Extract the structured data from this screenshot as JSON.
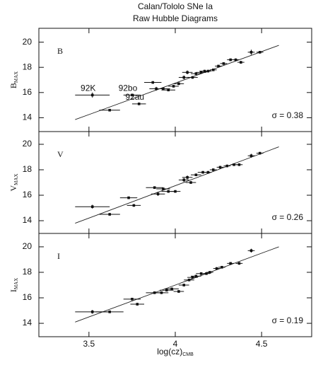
{
  "chart_data": [
    {
      "type": "scatter",
      "title": "Calan/Tololo SNe Ia",
      "subtitle": "Raw Hubble Diagrams",
      "panel_label": "B",
      "ylabel": "B",
      "ylabel_sub": "MAX",
      "annotation": "σ   = 0.38",
      "xlim": [
        3.21,
        4.79
      ],
      "ylim": [
        12.9,
        21.1
      ],
      "yticks": [
        14,
        16,
        18,
        20
      ],
      "color": "#111111",
      "x": [
        3.52,
        3.62,
        3.75,
        3.79,
        3.87,
        3.89,
        3.93,
        3.96,
        3.99,
        4.02,
        4.05,
        4.07,
        4.1,
        4.12,
        4.15,
        4.17,
        4.19,
        4.22,
        4.25,
        4.28,
        4.32,
        4.35,
        4.38,
        4.44,
        4.49
      ],
      "values": [
        15.8,
        14.6,
        15.8,
        15.1,
        16.8,
        16.3,
        16.3,
        16.2,
        16.5,
        16.7,
        17.2,
        17.6,
        17.2,
        17.5,
        17.6,
        17.7,
        17.7,
        17.8,
        18.1,
        18.3,
        18.6,
        18.6,
        18.4,
        19.2,
        19.2
      ],
      "xerr": [
        0.1,
        0.06,
        0.05,
        0.04,
        0.05,
        0.04,
        0.04,
        0.04,
        0.03,
        0.03,
        0.03,
        0.03,
        0.03,
        0.03,
        0.03,
        0.03,
        0.02,
        0.02,
        0.02,
        0.02,
        0.02,
        0.02,
        0.02,
        0.02,
        0.02
      ],
      "yerr": [
        0.2,
        0.1,
        0.1,
        0.1,
        0.1,
        0.15,
        0.1,
        0.1,
        0.1,
        0.1,
        0.15,
        0.15,
        0.1,
        0.1,
        0.1,
        0.1,
        0.1,
        0.1,
        0.1,
        0.1,
        0.1,
        0.1,
        0.1,
        0.2,
        0.1
      ],
      "labels": [
        "92K",
        null,
        "92bo",
        "92au",
        null,
        null,
        null,
        null,
        null,
        null,
        null,
        null,
        null,
        null,
        null,
        null,
        null,
        null,
        null,
        null,
        null,
        null,
        null,
        null,
        null
      ],
      "fit": {
        "x": [
          3.42,
          4.6
        ],
        "y": [
          13.85,
          19.75
        ]
      }
    },
    {
      "type": "scatter",
      "panel_label": "V",
      "ylabel": "V",
      "ylabel_sub": "MAX",
      "annotation": "σ   = 0.26",
      "xlim": [
        3.21,
        4.79
      ],
      "ylim": [
        13.0,
        21.0
      ],
      "yticks": [
        14,
        16,
        18,
        20
      ],
      "color": "#111111",
      "x": [
        3.52,
        3.62,
        3.73,
        3.76,
        3.88,
        3.9,
        3.93,
        3.96,
        4.0,
        4.05,
        4.07,
        4.09,
        4.12,
        4.16,
        4.19,
        4.22,
        4.26,
        4.3,
        4.34,
        4.37,
        4.44,
        4.49
      ],
      "values": [
        15.1,
        14.5,
        15.8,
        15.2,
        16.6,
        16.1,
        16.5,
        16.3,
        16.3,
        17.2,
        17.4,
        17.0,
        17.6,
        17.8,
        17.8,
        18.0,
        18.2,
        18.3,
        18.4,
        18.4,
        19.1,
        19.3
      ],
      "xerr": [
        0.1,
        0.06,
        0.05,
        0.04,
        0.05,
        0.04,
        0.04,
        0.04,
        0.03,
        0.03,
        0.03,
        0.03,
        0.03,
        0.03,
        0.02,
        0.02,
        0.02,
        0.02,
        0.02,
        0.02,
        0.02,
        0.02
      ],
      "yerr": [
        0.15,
        0.1,
        0.1,
        0.1,
        0.1,
        0.15,
        0.1,
        0.1,
        0.1,
        0.15,
        0.15,
        0.1,
        0.1,
        0.1,
        0.1,
        0.1,
        0.1,
        0.1,
        0.1,
        0.1,
        0.15,
        0.1
      ],
      "fit": {
        "x": [
          3.42,
          4.6
        ],
        "y": [
          13.8,
          19.8
        ]
      }
    },
    {
      "type": "scatter",
      "panel_label": "I",
      "ylabel": "I",
      "ylabel_sub": "MAX",
      "annotation": "σ   = 0.19",
      "xlabel": "log(cz)",
      "xlabel_sub": "CMB",
      "xlim": [
        3.21,
        4.79
      ],
      "ylim": [
        12.95,
        21.05
      ],
      "yticks": [
        14,
        16,
        18,
        20
      ],
      "xticks": [
        3.5,
        4,
        4.5
      ],
      "color": "#111111",
      "x": [
        3.52,
        3.62,
        3.75,
        3.78,
        3.88,
        3.92,
        3.95,
        3.98,
        4.02,
        4.05,
        4.08,
        4.1,
        4.12,
        4.15,
        4.18,
        4.2,
        4.24,
        4.27,
        4.32,
        4.37,
        4.44
      ],
      "values": [
        14.9,
        14.9,
        15.9,
        15.5,
        16.4,
        16.4,
        16.6,
        16.7,
        16.5,
        17.0,
        17.4,
        17.6,
        17.7,
        17.9,
        17.9,
        18.0,
        18.3,
        18.4,
        18.7,
        18.7,
        19.7
      ],
      "xerr": [
        0.1,
        0.08,
        0.05,
        0.04,
        0.05,
        0.04,
        0.04,
        0.04,
        0.03,
        0.03,
        0.03,
        0.03,
        0.03,
        0.03,
        0.02,
        0.02,
        0.02,
        0.02,
        0.02,
        0.02,
        0.02
      ],
      "yerr": [
        0.15,
        0.1,
        0.1,
        0.1,
        0.1,
        0.1,
        0.1,
        0.1,
        0.1,
        0.1,
        0.1,
        0.1,
        0.1,
        0.1,
        0.1,
        0.1,
        0.1,
        0.1,
        0.1,
        0.1,
        0.15
      ],
      "fit": {
        "x": [
          3.42,
          4.6
        ],
        "y": [
          14.1,
          20.0
        ]
      }
    }
  ]
}
